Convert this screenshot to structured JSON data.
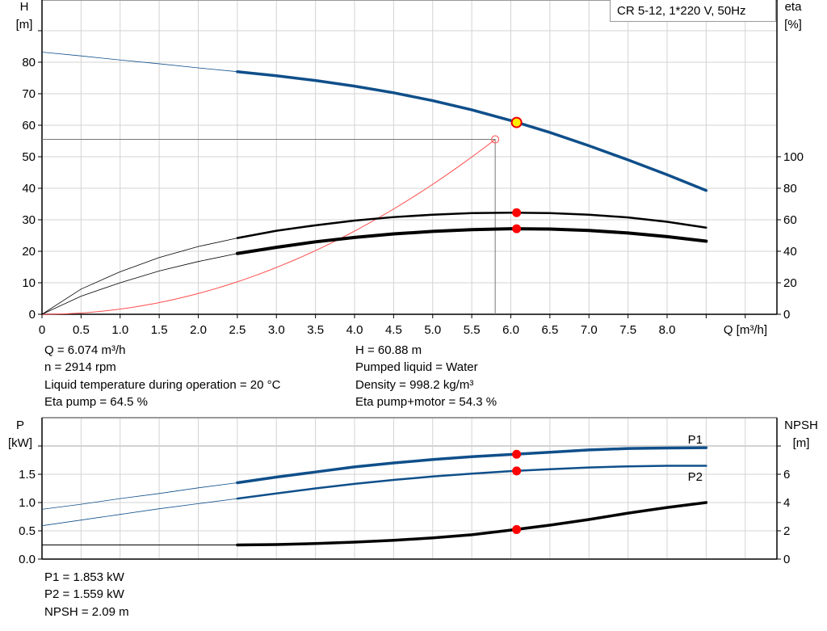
{
  "title": "CR 5-12, 1*220 V, 50Hz",
  "colors": {
    "head": "#0f4f8a",
    "power": "#0f4f8a",
    "efficiency": "#000000",
    "npsh": "#000000",
    "system": "#ff4d4d",
    "duty_point": "#ff0000",
    "duty_point_head": "#ffee00",
    "grid": "#d3d3d3"
  },
  "chart_data": [
    {
      "type": "line",
      "xlabel": "Q [m³/h]",
      "ylabel": {
        "name": "H",
        "unit": "[m]"
      },
      "y2label": {
        "name": "eta",
        "unit": "[%]"
      },
      "xlim": [
        0,
        9.4
      ],
      "ylim": [
        0,
        90
      ],
      "y2lim": [
        0,
        180
      ],
      "grid": true,
      "x_ticks": [
        "0",
        "0.5",
        "1.0",
        "1.5",
        "2.0",
        "2.5",
        "3.0",
        "3.5",
        "4.0",
        "4.5",
        "5.0",
        "5.5",
        "6.0",
        "6.5",
        "7.0",
        "7.5",
        "8.0"
      ],
      "y_ticks": [
        "0",
        "10",
        "20",
        "30",
        "40",
        "50",
        "60",
        "70",
        "80"
      ],
      "y2_ticks": [
        "0",
        "20",
        "40",
        "60",
        "80",
        "100"
      ],
      "x": [
        0,
        0.5,
        1,
        1.5,
        2,
        2.5,
        3,
        3.5,
        4,
        4.5,
        5,
        5.5,
        6,
        6.5,
        7,
        7.5,
        8,
        8.5
      ],
      "thick_from": 2.5,
      "series": [
        {
          "key": "head",
          "axis": "left",
          "color": "#0f4f8a",
          "values": [
            83.2,
            82,
            80.7,
            79.5,
            78.2,
            77,
            75.7,
            74.2,
            72.4,
            70.3,
            67.8,
            64.9,
            61.5,
            57.7,
            53.5,
            49,
            44.3,
            39.3
          ]
        },
        {
          "key": "eta_pump",
          "axis": "right",
          "color": "#000000",
          "values": [
            0,
            16,
            27,
            36,
            43,
            48.4,
            53,
            56.5,
            59.5,
            61.7,
            63.2,
            64.2,
            64.5,
            64.2,
            63.2,
            61.5,
            58.7,
            55
          ]
        },
        {
          "key": "eta_pump_motor",
          "axis": "right",
          "color": "#000000",
          "values": [
            0,
            11.5,
            20,
            27.5,
            33.5,
            38.6,
            42.5,
            46,
            48.8,
            51,
            52.6,
            53.7,
            54.3,
            54.1,
            53.2,
            51.6,
            49.3,
            46.4
          ]
        }
      ],
      "system_curve": {
        "q_max": 5.8,
        "h_max": 55.5
      },
      "duty_point": {
        "Q": 6.074,
        "H": 60.88,
        "eta_pump": 64.5,
        "eta_pump_motor": 54.3
      }
    },
    {
      "type": "line",
      "ylabel": {
        "name": "P",
        "unit": "[kW]"
      },
      "y2label": {
        "name": "NPSH",
        "unit": "[m]"
      },
      "xlim": [
        0,
        9.4
      ],
      "ylim": [
        0,
        2.5
      ],
      "y2lim": [
        0,
        10
      ],
      "grid": true,
      "y_ticks": [
        "0.0",
        "0.5",
        "1.0",
        "1.5"
      ],
      "y2_ticks": [
        "0",
        "2",
        "4",
        "6"
      ],
      "x": [
        0,
        0.5,
        1,
        1.5,
        2,
        2.5,
        3,
        3.5,
        4,
        4.5,
        5,
        5.5,
        6,
        6.5,
        7,
        7.5,
        8,
        8.5
      ],
      "thick_from": 2.5,
      "series": [
        {
          "key": "P1",
          "name": "P1",
          "axis": "left",
          "color": "#0f4f8a",
          "values": [
            0.88,
            0.97,
            1.07,
            1.16,
            1.26,
            1.35,
            1.45,
            1.54,
            1.63,
            1.7,
            1.76,
            1.81,
            1.85,
            1.89,
            1.93,
            1.955,
            1.965,
            1.97
          ]
        },
        {
          "key": "P2",
          "name": "P2",
          "axis": "left",
          "color": "#0f4f8a",
          "values": [
            0.59,
            0.69,
            0.79,
            0.89,
            0.98,
            1.07,
            1.16,
            1.25,
            1.33,
            1.4,
            1.46,
            1.51,
            1.555,
            1.59,
            1.62,
            1.64,
            1.65,
            1.65
          ]
        },
        {
          "key": "NPSH",
          "axis": "right",
          "color": "#000000",
          "values": [
            1,
            1,
            1,
            1,
            1,
            1,
            1.03,
            1.1,
            1.2,
            1.33,
            1.5,
            1.72,
            2.05,
            2.4,
            2.8,
            3.25,
            3.65,
            4.0
          ]
        }
      ],
      "duty_point": {
        "Q": 6.074,
        "P1": 1.853,
        "P2": 1.559,
        "NPSH": 2.09
      }
    }
  ],
  "info_top_left": [
    "Q = 6.074 m³/h",
    "n = 2914 rpm",
    "Liquid temperature during operation = 20 °C",
    "Eta pump = 64.5 %"
  ],
  "info_top_right": [
    "H = 60.88 m",
    "Pumped liquid = Water",
    "Density = 998.2 kg/m³",
    "Eta pump+motor = 54.3 %"
  ],
  "info_bottom": [
    "P1 = 1.853 kW",
    "P2 = 1.559 kW",
    "NPSH = 2.09 m"
  ]
}
